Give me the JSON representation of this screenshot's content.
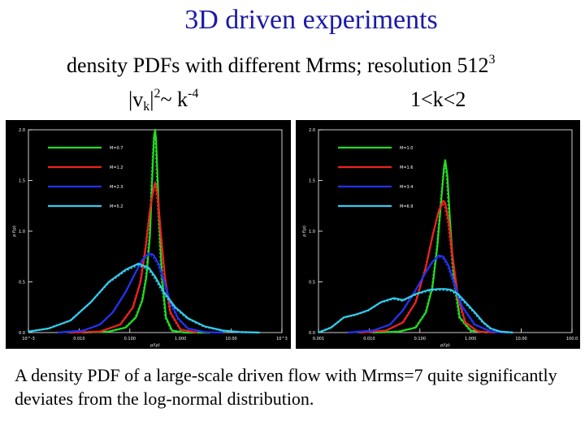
{
  "title": "3D driven experiments",
  "subtitle": {
    "text": "density PDFs with different Mrms; resolution 512",
    "sup": "3"
  },
  "spectrum": {
    "left": {
      "t1": "|v",
      "sub": "k",
      "t2": "|",
      "sup1": "2",
      "t3": "~ k",
      "sup2": "-4"
    },
    "right": "1<k<2"
  },
  "caption": "A density PDF of a large-scale driven flow with Mrms=7 quite significantly deviates from the log-normal distribution.",
  "colors": {
    "green": "#22dd22",
    "red": "#ee2222",
    "blue": "#2233ee",
    "cyan": "#33ccee",
    "axes": "#ffffff"
  },
  "chart_data": [
    {
      "type": "line",
      "xscale": "log",
      "xlim": [
        0.001,
        1000
      ],
      "ylim": [
        0,
        2.0
      ],
      "xticks": [
        "10^-3",
        "0.010",
        "0.100",
        "1.000",
        "10.00",
        "10^3"
      ],
      "yticks": [
        "0.0",
        "0.5",
        "1.0",
        "1.5",
        "2.0"
      ],
      "ylabel": "ρ f(ρ)",
      "xlabel": "ρ/⟨ρ⟩",
      "legend": "top-left",
      "series": [
        {
          "name": "M=0.7",
          "color": "green",
          "x": [
            0.02,
            0.08,
            0.2,
            0.35,
            0.5,
            0.62,
            0.75,
            0.82,
            0.9,
            0.95,
            1.0,
            1.05,
            1.12,
            1.25,
            1.45,
            1.8,
            2.5,
            5,
            20
          ],
          "y": [
            0,
            0.01,
            0.05,
            0.15,
            0.32,
            0.55,
            0.95,
            1.35,
            1.75,
            1.95,
            2.0,
            1.9,
            1.6,
            1.1,
            0.55,
            0.15,
            0.02,
            0,
            0
          ]
        },
        {
          "name": "M=1.2",
          "color": "red",
          "x": [
            0.01,
            0.05,
            0.15,
            0.3,
            0.45,
            0.6,
            0.75,
            0.9,
            1.0,
            1.15,
            1.35,
            1.7,
            2.3,
            4,
            10
          ],
          "y": [
            0,
            0.01,
            0.08,
            0.25,
            0.5,
            0.85,
            1.2,
            1.4,
            1.48,
            1.35,
            1.0,
            0.55,
            0.2,
            0.03,
            0
          ]
        },
        {
          "name": "M=2.3",
          "color": "blue",
          "x": [
            0.005,
            0.02,
            0.05,
            0.1,
            0.2,
            0.35,
            0.5,
            0.7,
            0.9,
            1.2,
            1.6,
            2.2,
            3.5,
            6,
            15,
            40
          ],
          "y": [
            0,
            0.02,
            0.08,
            0.2,
            0.4,
            0.6,
            0.72,
            0.78,
            0.77,
            0.68,
            0.52,
            0.32,
            0.14,
            0.04,
            0.005,
            0
          ]
        },
        {
          "name": "M=5.2",
          "color": "cyan",
          "x": [
            0.001,
            0.003,
            0.01,
            0.03,
            0.08,
            0.2,
            0.4,
            0.7,
            1.0,
            1.6,
            3,
            6,
            15,
            40,
            100,
            300
          ],
          "y": [
            0.01,
            0.04,
            0.12,
            0.3,
            0.5,
            0.62,
            0.68,
            0.64,
            0.55,
            0.4,
            0.25,
            0.14,
            0.06,
            0.02,
            0.005,
            0
          ]
        }
      ]
    },
    {
      "type": "line",
      "xscale": "log",
      "xlim": [
        0.001,
        1000
      ],
      "ylim": [
        0,
        2.0
      ],
      "xticks": [
        "0.001",
        "0.010",
        "0.100",
        "1.000",
        "10.00",
        "100.0"
      ],
      "yticks": [
        "0.0",
        "0.5",
        "1.0",
        "1.5",
        "2.0"
      ],
      "ylabel": "ρ f(ρ)",
      "xlabel": "ρ/⟨ρ⟩",
      "legend": "top-left",
      "series": [
        {
          "name": "M=1.0",
          "color": "green",
          "x": [
            0.02,
            0.08,
            0.2,
            0.35,
            0.5,
            0.65,
            0.8,
            0.95,
            1.0,
            1.12,
            1.3,
            1.6,
            2.2,
            4,
            10
          ],
          "y": [
            0,
            0.01,
            0.05,
            0.2,
            0.45,
            0.85,
            1.3,
            1.65,
            1.7,
            1.55,
            1.1,
            0.55,
            0.15,
            0.02,
            0
          ]
        },
        {
          "name": "M=1.6",
          "color": "red",
          "x": [
            0.01,
            0.04,
            0.1,
            0.2,
            0.35,
            0.5,
            0.7,
            0.9,
            1.0,
            1.2,
            1.5,
            2.0,
            3,
            6,
            15
          ],
          "y": [
            0,
            0.02,
            0.1,
            0.3,
            0.65,
            0.95,
            1.2,
            1.3,
            1.28,
            1.1,
            0.75,
            0.35,
            0.1,
            0.01,
            0
          ]
        },
        {
          "name": "M=3.4",
          "color": "blue",
          "x": [
            0.005,
            0.02,
            0.05,
            0.1,
            0.2,
            0.35,
            0.5,
            0.7,
            0.9,
            1.2,
            1.6,
            2.5,
            5,
            12,
            30
          ],
          "y": [
            0,
            0.02,
            0.08,
            0.22,
            0.42,
            0.6,
            0.7,
            0.76,
            0.75,
            0.66,
            0.5,
            0.26,
            0.08,
            0.01,
            0
          ]
        },
        {
          "name": "M=6.9",
          "color": "cyan",
          "x": [
            0.001,
            0.002,
            0.004,
            0.008,
            0.015,
            0.03,
            0.06,
            0.1,
            0.2,
            0.4,
            0.7,
            1.0,
            1.4,
            2.0,
            3,
            5,
            8,
            12,
            20,
            40
          ],
          "y": [
            0,
            0.05,
            0.15,
            0.18,
            0.22,
            0.3,
            0.34,
            0.32,
            0.38,
            0.42,
            0.43,
            0.43,
            0.42,
            0.38,
            0.3,
            0.2,
            0.1,
            0.04,
            0.01,
            0
          ]
        }
      ]
    }
  ]
}
